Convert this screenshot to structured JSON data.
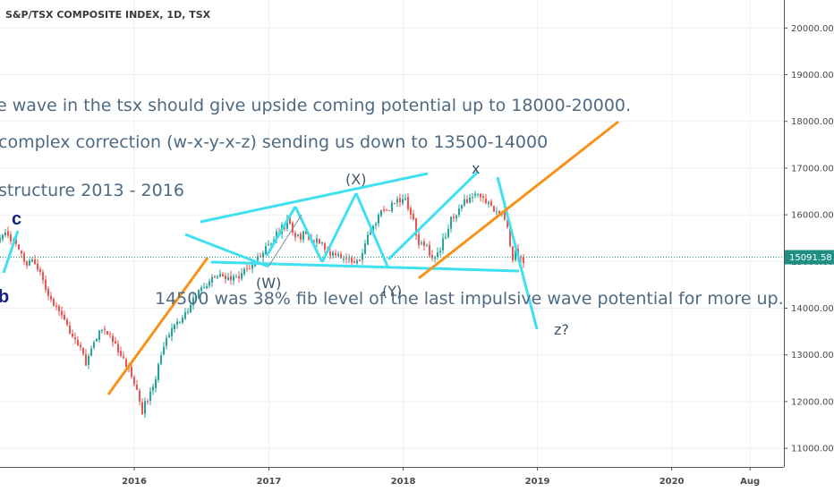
{
  "chart_data": {
    "type": "candlestick",
    "title": "S&P/TSX COMPOSITE INDEX, 1D, TSX",
    "ylim": [
      10600,
      20600
    ],
    "y_ticks": [
      11000,
      12000,
      13000,
      14000,
      15000,
      16000,
      17000,
      18000,
      19000,
      20000
    ],
    "y_tick_labels": [
      "11000.00",
      "12000.00",
      "13000.00",
      "14000.00",
      "15000.00",
      "16000.00",
      "17000.00",
      "18000.00",
      "19000.00",
      "20000.00"
    ],
    "xlim": [
      "2015-01-01",
      "2020-11-01"
    ],
    "x_ticks": [
      "2016-01-01",
      "2017-01-01",
      "2018-01-01",
      "2019-01-01",
      "2020-01-01",
      "2020-08-01"
    ],
    "x_tick_labels": [
      "2016",
      "2017",
      "2018",
      "2019",
      "2020",
      "Aug"
    ],
    "last_price": 15091.58,
    "last_price_label": "15091.58",
    "price_path": [
      [
        "2015-01-01",
        15450
      ],
      [
        "2015-01-20",
        15600
      ],
      [
        "2015-02-15",
        15300
      ],
      [
        "2015-03-10",
        14950
      ],
      [
        "2015-04-05",
        15000
      ],
      [
        "2015-05-01",
        14500
      ],
      [
        "2015-05-25",
        14100
      ],
      [
        "2015-06-20",
        13850
      ],
      [
        "2015-07-15",
        13350
      ],
      [
        "2015-08-10",
        13100
      ],
      [
        "2015-08-25",
        12800
      ],
      [
        "2015-09-15",
        13350
      ],
      [
        "2015-10-05",
        13550
      ],
      [
        "2015-11-01",
        13350
      ],
      [
        "2015-11-25",
        12950
      ],
      [
        "2015-12-15",
        12750
      ],
      [
        "2016-01-05",
        12350
      ],
      [
        "2016-01-20",
        11750
      ],
      [
        "2016-02-05",
        12050
      ],
      [
        "2016-02-25",
        12400
      ],
      [
        "2016-03-20",
        13200
      ],
      [
        "2016-04-15",
        13600
      ],
      [
        "2016-05-10",
        13800
      ],
      [
        "2016-06-05",
        14100
      ],
      [
        "2016-07-01",
        14450
      ],
      [
        "2016-08-01",
        14600
      ],
      [
        "2016-09-01",
        14700
      ],
      [
        "2016-10-01",
        14650
      ],
      [
        "2016-11-01",
        14800
      ],
      [
        "2016-12-01",
        15050
      ],
      [
        "2016-12-20",
        15250
      ],
      [
        "2017-01-20",
        15550
      ],
      [
        "2017-02-20",
        15850
      ],
      [
        "2017-03-15",
        15500
      ],
      [
        "2017-04-10",
        15600
      ],
      [
        "2017-05-05",
        15450
      ],
      [
        "2017-06-01",
        15300
      ],
      [
        "2017-06-25",
        15150
      ],
      [
        "2017-07-20",
        15100
      ],
      [
        "2017-08-15",
        14950
      ],
      [
        "2017-09-05",
        15000
      ],
      [
        "2017-10-01",
        15600
      ],
      [
        "2017-11-01",
        16050
      ],
      [
        "2017-12-01",
        16200
      ],
      [
        "2018-01-05",
        16350
      ],
      [
        "2018-01-25",
        16000
      ],
      [
        "2018-02-08",
        15400
      ],
      [
        "2018-03-05",
        15300
      ],
      [
        "2018-03-25",
        15000
      ],
      [
        "2018-04-15",
        15350
      ],
      [
        "2018-05-10",
        15900
      ],
      [
        "2018-06-10",
        16200
      ],
      [
        "2018-07-10",
        16450
      ],
      [
        "2018-07-20",
        16550
      ],
      [
        "2018-08-10",
        16300
      ],
      [
        "2018-09-01",
        16150
      ],
      [
        "2018-09-25",
        16050
      ],
      [
        "2018-10-10",
        15800
      ],
      [
        "2018-10-25",
        15050
      ],
      [
        "2018-11-05",
        15250
      ],
      [
        "2018-11-20",
        15000
      ],
      [
        "2018-11-28",
        15090
      ]
    ],
    "annotations": [
      "e wave in the tsx should give upside coming potential up to 18000-20000.",
      "complex correction (w-x-y-x-z) sending us down to 13500-14000",
      "structure 2013 - 2016",
      "14500 was 38% fib level of the last impulsive wave potential for more up."
    ],
    "wave_labels": {
      "c": "c",
      "b": "b",
      "W": "(W)",
      "X": "(X)",
      "Y": "(Y)",
      "x": "x",
      "z": "z?"
    },
    "colors": {
      "candle_up": "#26a69a",
      "candle_down": "#ef5350",
      "cyan_line": "#40e0f0",
      "orange_line": "#f7931a",
      "price_line": "#1f8f84",
      "last_price_badge": "#1f8f84",
      "annotation_text": "#4e6a84"
    }
  }
}
